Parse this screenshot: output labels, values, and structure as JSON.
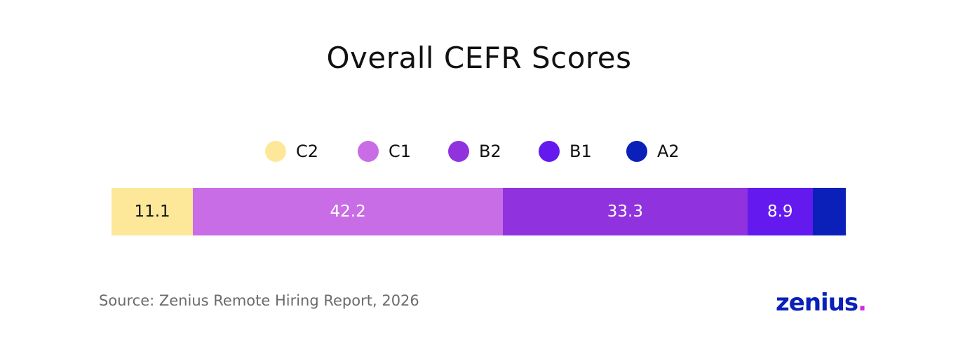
{
  "chart_data": {
    "type": "bar",
    "orientation": "horizontal-stacked-100",
    "title": "Overall CEFR Scores",
    "categories": [
      "Overall"
    ],
    "series": [
      {
        "name": "C2",
        "values": [
          11.1
        ],
        "color": "#fde89a",
        "label": "11.1",
        "label_color": "#111111"
      },
      {
        "name": "C1",
        "values": [
          42.2
        ],
        "color": "#c86de6",
        "label": "42.2",
        "label_color": "#ffffff"
      },
      {
        "name": "B2",
        "values": [
          33.3
        ],
        "color": "#9033de",
        "label": "33.3",
        "label_color": "#ffffff"
      },
      {
        "name": "B1",
        "values": [
          8.9
        ],
        "color": "#641aef",
        "label": "8.9",
        "label_color": "#ffffff"
      },
      {
        "name": "A2",
        "values": [
          4.4
        ],
        "color": "#0a20b8",
        "label": "",
        "label_color": "#ffffff"
      }
    ],
    "xlim": [
      0,
      100
    ],
    "grid": false,
    "legend_position": "top"
  },
  "footer": {
    "source": "Source: Zenius Remote Hiring Report, 2026"
  },
  "logo": {
    "text": "zenius",
    "dot": ".",
    "text_color": "#0a20b8",
    "dot_color": "#c830e0"
  }
}
